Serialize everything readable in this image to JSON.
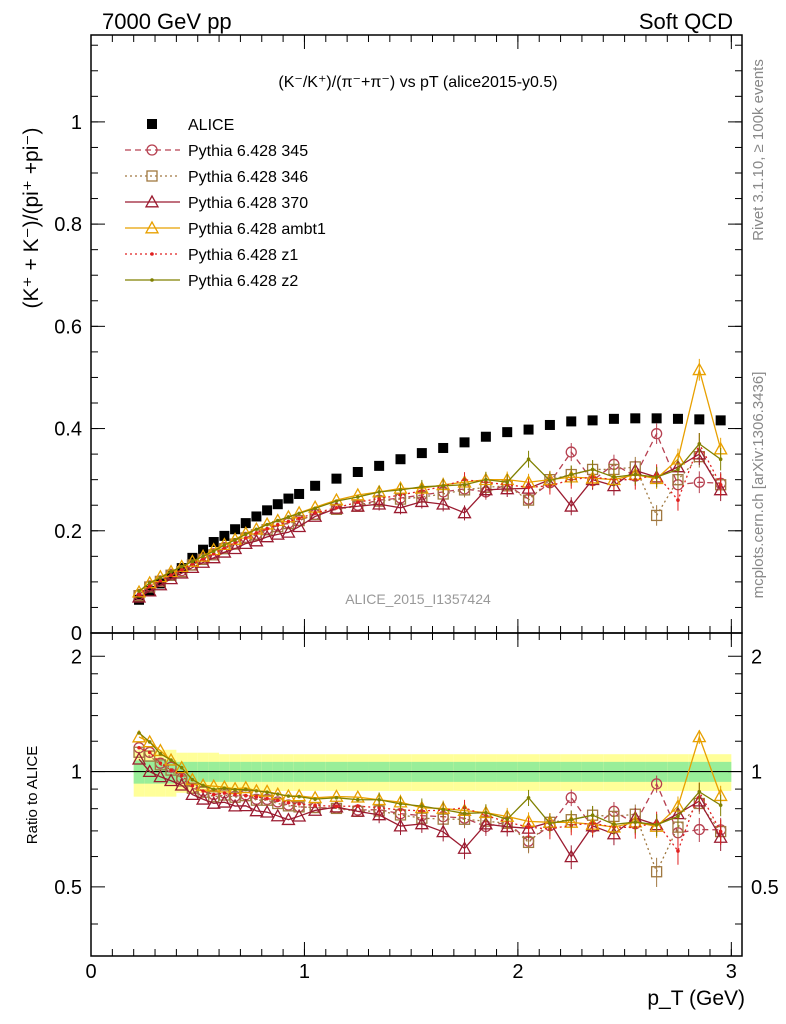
{
  "header": {
    "left": "7000 GeV pp",
    "right": "Soft QCD"
  },
  "chart_data": {
    "type": "scatter",
    "title": "(K⁻/K⁺)/(π⁻+π⁻) vs pT (alice2015-y0.5)",
    "ylabel": "(K⁺ + K⁻)/(pi⁺ +pi⁻)",
    "xlabel": "p_T (GeV)",
    "ratio_ylabel": "Ratio to ALICE",
    "xlim": [
      0,
      3.05
    ],
    "ylim": [
      0,
      1.17
    ],
    "ratio_ylim": [
      0.33,
      2.3
    ],
    "ratio_log_scale": true,
    "x_ticks": [
      "0",
      "1",
      "2",
      "3"
    ],
    "y_ticks": [
      "0",
      "0.2",
      "0.4",
      "0.6",
      "0.8",
      "1"
    ],
    "ratio_ticks": [
      "0.5",
      "1",
      "2"
    ],
    "right_label_top": "Rivet 3.1.10, ≥ 100k events",
    "right_label_bottom": "mcplots.cern.ch [arXiv:1306.3436]",
    "watermark": "ALICE_2015_I1357424",
    "x": [
      0.225,
      0.275,
      0.325,
      0.375,
      0.425,
      0.475,
      0.525,
      0.575,
      0.625,
      0.675,
      0.725,
      0.775,
      0.825,
      0.875,
      0.925,
      0.975,
      1.05,
      1.15,
      1.25,
      1.35,
      1.45,
      1.55,
      1.65,
      1.75,
      1.85,
      1.95,
      2.05,
      2.15,
      2.25,
      2.35,
      2.45,
      2.55,
      2.65,
      2.75,
      2.85,
      2.95
    ],
    "series": [
      {
        "name": "ALICE",
        "color": "#000000",
        "marker": "filled-square",
        "line": "none",
        "values": [
          0.065,
          0.082,
          0.097,
          0.112,
          0.127,
          0.147,
          0.163,
          0.178,
          0.19,
          0.203,
          0.215,
          0.228,
          0.24,
          0.252,
          0.263,
          0.272,
          0.288,
          0.302,
          0.315,
          0.327,
          0.34,
          0.352,
          0.362,
          0.373,
          0.384,
          0.393,
          0.398,
          0.407,
          0.414,
          0.416,
          0.419,
          0.42,
          0.42,
          0.419,
          0.418,
          0.416
        ]
      },
      {
        "name": "Pythia 6.428 345",
        "color": "#b64050",
        "marker": "open-circle",
        "line": "dashed",
        "values": [
          0.075,
          0.092,
          0.102,
          0.115,
          0.122,
          0.133,
          0.145,
          0.155,
          0.167,
          0.175,
          0.187,
          0.193,
          0.203,
          0.21,
          0.215,
          0.22,
          0.232,
          0.242,
          0.25,
          0.26,
          0.264,
          0.27,
          0.276,
          0.282,
          0.276,
          0.29,
          0.262,
          0.294,
          0.354,
          0.298,
          0.33,
          0.307,
          0.39,
          0.29,
          0.295,
          0.293
        ]
      },
      {
        "name": "Pythia 6.428 346",
        "color": "#a07840",
        "marker": "open-square",
        "line": "dotted",
        "values": [
          0.073,
          0.09,
          0.101,
          0.113,
          0.12,
          0.133,
          0.144,
          0.153,
          0.165,
          0.174,
          0.186,
          0.192,
          0.202,
          0.208,
          0.214,
          0.22,
          0.232,
          0.242,
          0.248,
          0.258,
          0.262,
          0.266,
          0.272,
          0.28,
          0.285,
          0.288,
          0.26,
          0.3,
          0.31,
          0.32,
          0.32,
          0.325,
          0.23,
          0.3,
          0.345,
          0.29
        ]
      },
      {
        "name": "Pythia 6.428 370",
        "color": "#9b1b30",
        "marker": "open-triangle",
        "line": "solid",
        "values": [
          0.07,
          0.082,
          0.094,
          0.106,
          0.117,
          0.128,
          0.138,
          0.147,
          0.158,
          0.165,
          0.175,
          0.18,
          0.188,
          0.193,
          0.197,
          0.208,
          0.228,
          0.244,
          0.248,
          0.252,
          0.245,
          0.257,
          0.252,
          0.235,
          0.28,
          0.282,
          0.283,
          0.3,
          0.248,
          0.3,
          0.288,
          0.318,
          0.305,
          0.325,
          0.35,
          0.28
        ]
      },
      {
        "name": "Pythia 6.428 ambt1",
        "color": "#e8a000",
        "marker": "open-triangle",
        "line": "solid",
        "values": [
          0.08,
          0.098,
          0.11,
          0.12,
          0.13,
          0.14,
          0.15,
          0.163,
          0.173,
          0.183,
          0.195,
          0.203,
          0.213,
          0.22,
          0.227,
          0.235,
          0.246,
          0.26,
          0.27,
          0.276,
          0.283,
          0.283,
          0.29,
          0.295,
          0.3,
          0.3,
          0.295,
          0.3,
          0.305,
          0.303,
          0.3,
          0.31,
          0.302,
          0.34,
          0.515,
          0.36
        ]
      },
      {
        "name": "Pythia 6.428 z1",
        "color": "#e02020",
        "marker": "small-dot",
        "line": "dotted",
        "values": [
          0.075,
          0.092,
          0.102,
          0.113,
          0.124,
          0.135,
          0.145,
          0.155,
          0.167,
          0.177,
          0.186,
          0.196,
          0.204,
          0.212,
          0.218,
          0.224,
          0.235,
          0.245,
          0.256,
          0.263,
          0.27,
          0.278,
          0.287,
          0.3,
          0.295,
          0.29,
          0.285,
          0.288,
          0.3,
          0.305,
          0.3,
          0.3,
          0.31,
          0.26,
          0.37,
          0.29
        ]
      },
      {
        "name": "Pythia 6.428 z2",
        "color": "#808000",
        "marker": "small-dot",
        "line": "solid",
        "values": [
          0.082,
          0.098,
          0.108,
          0.12,
          0.13,
          0.14,
          0.15,
          0.16,
          0.172,
          0.182,
          0.193,
          0.203,
          0.212,
          0.22,
          0.227,
          0.234,
          0.244,
          0.258,
          0.266,
          0.276,
          0.28,
          0.286,
          0.288,
          0.29,
          0.3,
          0.295,
          0.34,
          0.298,
          0.31,
          0.32,
          0.305,
          0.31,
          0.305,
          0.32,
          0.37,
          0.34
        ]
      }
    ]
  }
}
